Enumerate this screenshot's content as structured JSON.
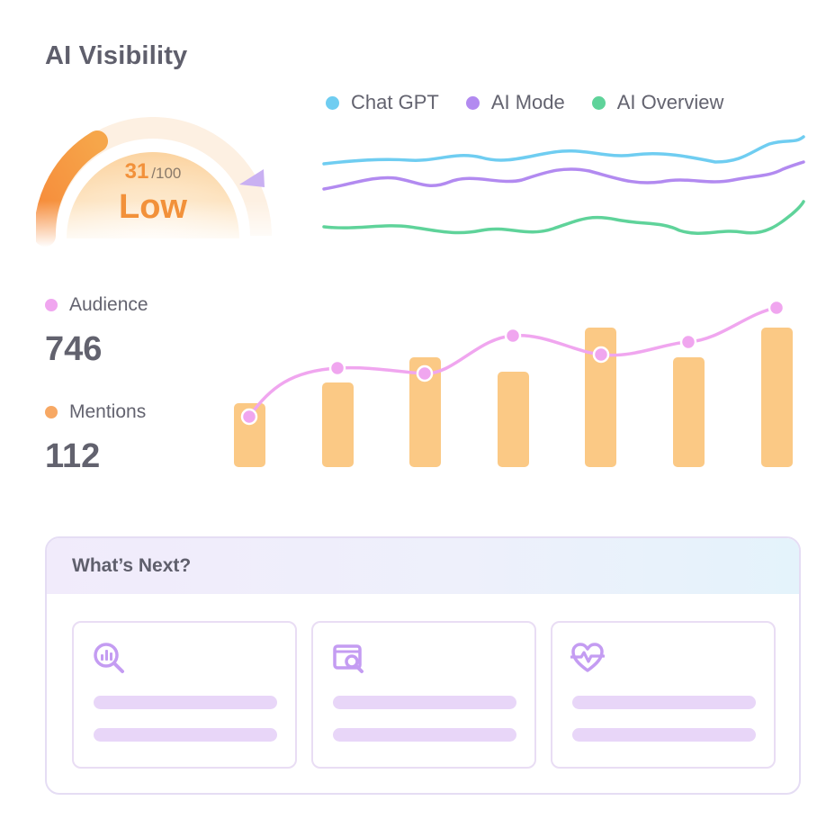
{
  "title": "AI Visibility",
  "gauge": {
    "score": "31",
    "max": "/100",
    "level": "Low",
    "fraction": 0.31,
    "colors": {
      "fill": "#f39a3c",
      "track": "#fdeede",
      "marker": "#c9b0f2"
    }
  },
  "legend": [
    {
      "label": "Chat GPT",
      "color": "#6fcdf1"
    },
    {
      "label": "AI Mode",
      "color": "#b28af0"
    },
    {
      "label": "AI Overview",
      "color": "#5fd39a"
    }
  ],
  "metrics": {
    "audience": {
      "label": "Audience",
      "value": "746",
      "color": "#f0a6ef"
    },
    "mentions": {
      "label": "Mentions",
      "value": "112",
      "color": "#f7a864"
    }
  },
  "next": {
    "title": "What’s Next?",
    "tiles": [
      {
        "icon": "search-chart-icon"
      },
      {
        "icon": "browser-search-icon"
      },
      {
        "icon": "heart-pulse-icon"
      }
    ]
  }
}
